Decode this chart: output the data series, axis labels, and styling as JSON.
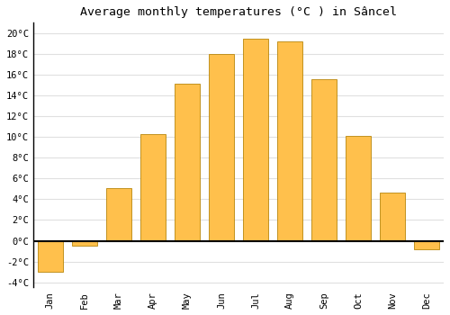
{
  "title": "Average monthly temperatures (°C ) in Sâncel",
  "months": [
    "Jan",
    "Feb",
    "Mar",
    "Apr",
    "May",
    "Jun",
    "Jul",
    "Aug",
    "Sep",
    "Oct",
    "Nov",
    "Dec"
  ],
  "values": [
    -3.0,
    -0.5,
    5.1,
    10.3,
    15.1,
    18.0,
    19.5,
    19.2,
    15.6,
    10.1,
    4.6,
    -0.8
  ],
  "bar_color": "#FFC04C",
  "bar_edge_color": "#B8860B",
  "ylim_min": -4.5,
  "ylim_max": 21.0,
  "yticks": [
    -4,
    -2,
    0,
    2,
    4,
    6,
    8,
    10,
    12,
    14,
    16,
    18,
    20
  ],
  "ytick_labels": [
    "-4°C",
    "-2°C",
    "0°C",
    "2°C",
    "4°C",
    "6°C",
    "8°C",
    "10°C",
    "12°C",
    "14°C",
    "16°C",
    "18°C",
    "20°C"
  ],
  "background_color": "#ffffff",
  "plot_bg_color": "#ffffff",
  "grid_color": "#e0e0e0",
  "title_fontsize": 9.5,
  "tick_fontsize": 7.5,
  "bar_width": 0.75
}
